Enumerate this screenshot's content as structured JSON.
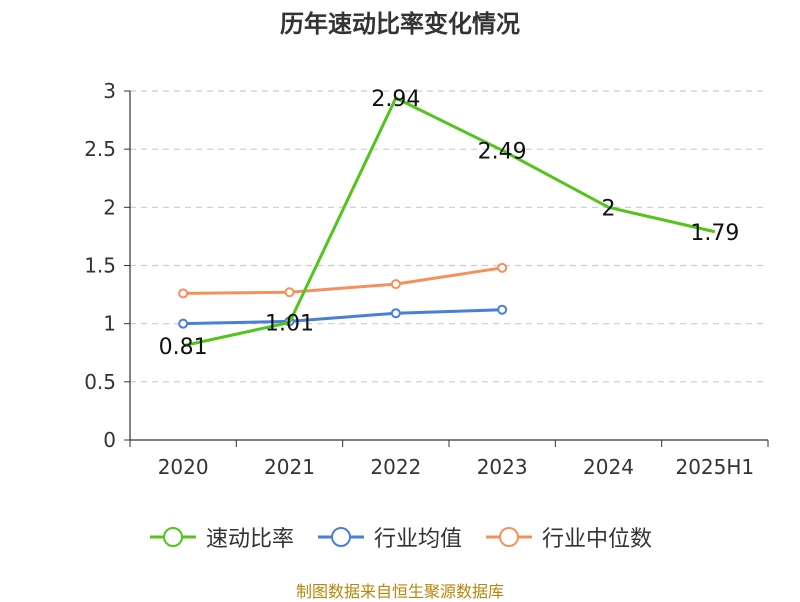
{
  "title": "历年速动比率变化情况",
  "source": "制图数据来自恒生聚源数据库",
  "chart_data": {
    "type": "line",
    "title": "历年速动比率变化情况",
    "categories": [
      "2020",
      "2021",
      "2022",
      "2023",
      "2024",
      "2025H1"
    ],
    "ylim": [
      0,
      3
    ],
    "yticks": [
      "0",
      "0.5",
      "1",
      "1.5",
      "2",
      "2.5",
      "3"
    ],
    "grid": true,
    "legend_position": "bottom",
    "series": [
      {
        "name": "速动比率",
        "color": "#52c41a",
        "values": [
          0.81,
          1.01,
          2.94,
          2.49,
          2,
          1.79
        ],
        "data_labels": [
          "0.81",
          "1.01",
          "2.94",
          "2.49",
          "2",
          "1.79"
        ]
      },
      {
        "name": "行业均值",
        "color": "#4a7fd9",
        "values": [
          1.0,
          1.02,
          1.09,
          1.12,
          null,
          null
        ]
      },
      {
        "name": "行业中位数",
        "color": "#f5905a",
        "values": [
          1.26,
          1.27,
          1.34,
          1.48,
          null,
          null
        ]
      }
    ]
  }
}
